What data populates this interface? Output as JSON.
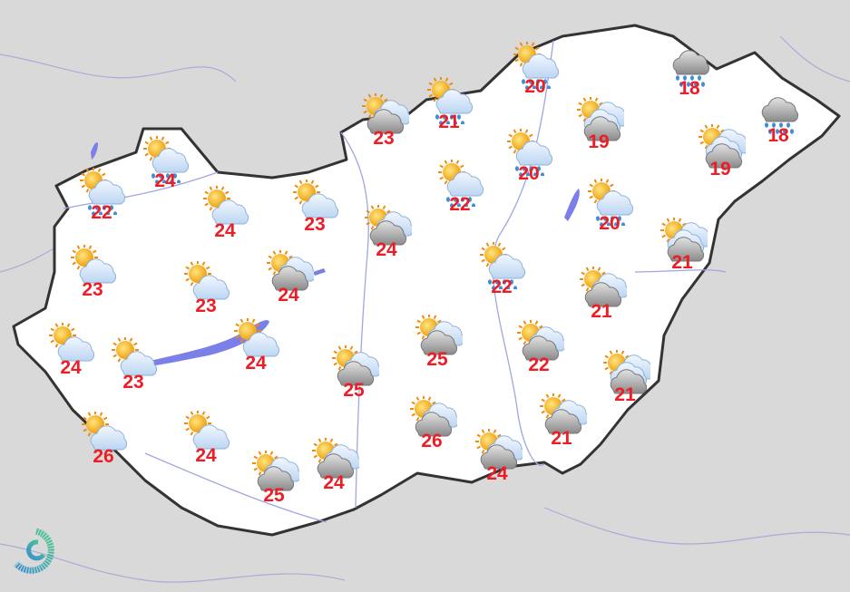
{
  "map": {
    "country": "Hungary",
    "colors": {
      "country_fill": "#ffffff",
      "surroundings": "#d9d9d9",
      "border": "#333333",
      "rivers": "#9aa0e0",
      "lakes": "#7b7fe8",
      "temperature": "#ee1c25"
    },
    "temperature_unit": "°C"
  },
  "stations": [
    {
      "icon": "sun-cloud-rain",
      "temp": "22"
    },
    {
      "icon": "sun-cloud-rain",
      "temp": "24"
    },
    {
      "icon": "sun-cloud",
      "temp": "24"
    },
    {
      "icon": "sun-cloud",
      "temp": "23"
    },
    {
      "icon": "sun-darkcloud",
      "temp": "23"
    },
    {
      "icon": "sun-cloud-rain",
      "temp": "21"
    },
    {
      "icon": "sun-cloud-rain",
      "temp": "20"
    },
    {
      "icon": "sun-cloud-darkcloud",
      "temp": "19"
    },
    {
      "icon": "darkcloud-rain",
      "temp": "18"
    },
    {
      "icon": "darkcloud-rain",
      "temp": "18"
    },
    {
      "icon": "sun-cloud-darkcloud",
      "temp": "19"
    },
    {
      "icon": "sun-cloud-rain",
      "temp": "20"
    },
    {
      "icon": "sun-cloud-rain",
      "temp": "22"
    },
    {
      "icon": "sun-cloud-rain",
      "temp": "20"
    },
    {
      "icon": "sun-darkcloud",
      "temp": "24"
    },
    {
      "icon": "sun-cloud",
      "temp": "23"
    },
    {
      "icon": "sun-cloud",
      "temp": "23"
    },
    {
      "icon": "sun-darkcloud",
      "temp": "24"
    },
    {
      "icon": "sun-cloud-rain",
      "temp": "22"
    },
    {
      "icon": "sun-cloud-darkcloud",
      "temp": "21"
    },
    {
      "icon": "sun-darkcloud",
      "temp": "21"
    },
    {
      "icon": "sun-cloud",
      "temp": "24"
    },
    {
      "icon": "sun-cloud",
      "temp": "23"
    },
    {
      "icon": "sun-cloud",
      "temp": "24"
    },
    {
      "icon": "sun-darkcloud",
      "temp": "25"
    },
    {
      "icon": "sun-darkcloud",
      "temp": "25"
    },
    {
      "icon": "sun-darkcloud",
      "temp": "22"
    },
    {
      "icon": "sun-cloud-darkcloud",
      "temp": "21"
    },
    {
      "icon": "sun-cloud",
      "temp": "26"
    },
    {
      "icon": "sun-cloud",
      "temp": "24"
    },
    {
      "icon": "sun-darkcloud",
      "temp": "25"
    },
    {
      "icon": "sun-darkcloud",
      "temp": "24"
    },
    {
      "icon": "sun-darkcloud",
      "temp": "26"
    },
    {
      "icon": "sun-darkcloud",
      "temp": "24"
    },
    {
      "icon": "sun-darkcloud",
      "temp": "21"
    }
  ],
  "logo": {
    "icon": "swirl-logo-icon"
  }
}
